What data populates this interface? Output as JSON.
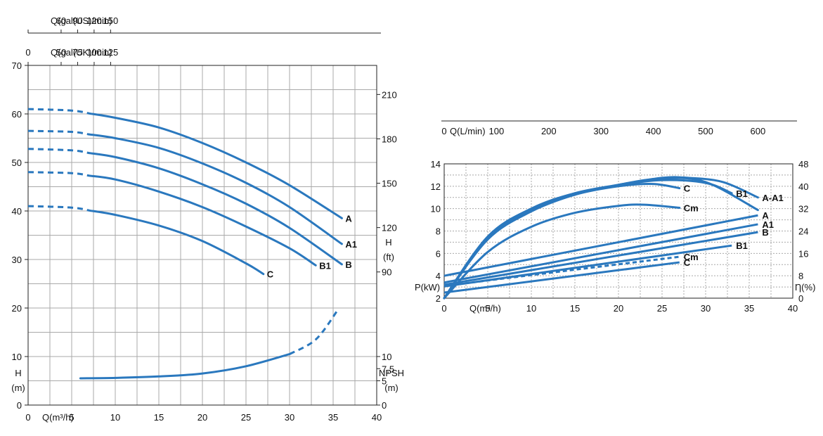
{
  "chart_data": [
    {
      "name": "head-npsh-chart",
      "type": "line",
      "x_label": "Q(m³/h)",
      "x_ticks": [
        0,
        5,
        10,
        15,
        20,
        25,
        30,
        35,
        40
      ],
      "xlim": [
        0,
        40
      ],
      "top_axes": [
        {
          "label": "Q(gal(US)/min)",
          "ticks": [
            60,
            90,
            120,
            150
          ]
        },
        {
          "label": "Q(gal(UK)/min)",
          "ticks": [
            0,
            50,
            75,
            100,
            125
          ]
        }
      ],
      "left_axis": {
        "label_line1": "H",
        "label_line2": "(m)",
        "ticks": [
          0,
          10,
          20,
          30,
          40,
          50,
          60,
          70
        ],
        "ylim": [
          0,
          70
        ]
      },
      "right_axis_ft": {
        "label_line1": "H",
        "label_line2": "(ft)",
        "ticks": [
          90,
          120,
          150,
          180,
          210
        ]
      },
      "right_axis_npsh": {
        "label_line1": "NPSH",
        "label_line2": "(m)",
        "ticks": [
          "0",
          "5",
          "7,5",
          "10"
        ]
      },
      "series": [
        {
          "name": "A",
          "dashed_x": [
            0,
            7
          ],
          "solid_x": [
            7,
            36
          ],
          "points": [
            [
              0,
              61
            ],
            [
              5,
              60.7
            ],
            [
              10,
              59.2
            ],
            [
              15,
              57.2
            ],
            [
              20,
              54
            ],
            [
              25,
              50
            ],
            [
              30,
              45.3
            ],
            [
              36,
              38.5
            ]
          ]
        },
        {
          "name": "A1",
          "dashed_x": [
            0,
            7
          ],
          "solid_x": [
            7,
            36
          ],
          "points": [
            [
              0,
              56.5
            ],
            [
              5,
              56.3
            ],
            [
              10,
              55
            ],
            [
              15,
              53
            ],
            [
              20,
              49.8
            ],
            [
              25,
              45.8
            ],
            [
              30,
              40.8
            ],
            [
              36,
              33.2
            ]
          ]
        },
        {
          "name": "B",
          "dashed_x": [
            0,
            7
          ],
          "solid_x": [
            7,
            36
          ],
          "points": [
            [
              0,
              52.8
            ],
            [
              5,
              52.5
            ],
            [
              10,
              51.1
            ],
            [
              15,
              48.8
            ],
            [
              20,
              45.5
            ],
            [
              25,
              41.5
            ],
            [
              30,
              36.5
            ],
            [
              36,
              29
            ]
          ]
        },
        {
          "name": "B1",
          "dashed_x": [
            0,
            7
          ],
          "solid_x": [
            7,
            33
          ],
          "points": [
            [
              0,
              48
            ],
            [
              5,
              47.8
            ],
            [
              10,
              46.5
            ],
            [
              15,
              44
            ],
            [
              20,
              40.8
            ],
            [
              25,
              36.8
            ],
            [
              30,
              32.3
            ],
            [
              33,
              28.8
            ]
          ]
        },
        {
          "name": "C",
          "dashed_x": [
            0,
            7
          ],
          "solid_x": [
            7,
            27
          ],
          "points": [
            [
              0,
              41
            ],
            [
              5,
              40.7
            ],
            [
              10,
              39.2
            ],
            [
              15,
              37
            ],
            [
              20,
              33.8
            ],
            [
              25,
              29.2
            ],
            [
              27,
              27
            ]
          ]
        },
        {
          "name": "NPSH",
          "solid_x": [
            6,
            30
          ],
          "dashed_x": [
            30,
            35.5
          ],
          "points": [
            [
              6,
              5.5
            ],
            [
              10,
              5.6
            ],
            [
              15,
              5.9
            ],
            [
              20,
              6.5
            ],
            [
              25,
              8
            ],
            [
              30,
              10.5
            ],
            [
              33,
              13.5
            ],
            [
              35.5,
              19.5
            ]
          ]
        }
      ]
    },
    {
      "name": "power-efficiency-chart",
      "type": "line",
      "x_label": "Q(m³/h)",
      "x_ticks": [
        0,
        5,
        10,
        15,
        20,
        25,
        30,
        35,
        40
      ],
      "xlim": [
        0,
        40
      ],
      "top_axis": {
        "label": "Q(L/min)",
        "ticks": [
          0,
          100,
          200,
          300,
          400,
          500,
          600
        ]
      },
      "left_axis": {
        "label": "P(kW)",
        "ticks": [
          2,
          4,
          6,
          8,
          10,
          12,
          14
        ],
        "ylim": [
          2,
          14
        ]
      },
      "right_axis": {
        "label": "Ƞ(%)",
        "ticks": [
          0,
          8,
          16,
          24,
          32,
          40,
          48
        ],
        "ylim": [
          0,
          48
        ]
      },
      "power_series": [
        {
          "name": "A",
          "label": "A",
          "points": [
            [
              0,
              4
            ],
            [
              36,
              9.4
            ]
          ]
        },
        {
          "name": "A1",
          "label": "A1",
          "points": [
            [
              0,
              3.4
            ],
            [
              36,
              8.6
            ]
          ]
        },
        {
          "name": "B",
          "label": "B",
          "points": [
            [
              0,
              3.2
            ],
            [
              36,
              7.9
            ]
          ]
        },
        {
          "name": "B1",
          "label": "B1",
          "points": [
            [
              0,
              3.05
            ],
            [
              33,
              6.7
            ]
          ]
        },
        {
          "name": "Cm",
          "label": "Cm",
          "dashed": true,
          "points": [
            [
              0,
              3.1
            ],
            [
              27,
              5.7
            ]
          ]
        },
        {
          "name": "C",
          "label": "C",
          "points": [
            [
              0,
              2.5
            ],
            [
              27,
              5.2
            ]
          ]
        }
      ],
      "efficiency_series": [
        {
          "name": "A-A1",
          "label": "A-A1",
          "points": [
            [
              0,
              0
            ],
            [
              5,
              22
            ],
            [
              10,
              32
            ],
            [
              15,
              37.5
            ],
            [
              20,
              40.5
            ],
            [
              25,
              43
            ],
            [
              28,
              43
            ],
            [
              32,
              41.5
            ],
            [
              36,
              36
            ]
          ]
        },
        {
          "name": "B1-eff",
          "label": "B1",
          "points": [
            [
              0,
              0
            ],
            [
              5,
              22
            ],
            [
              10,
              32
            ],
            [
              15,
              37.5
            ],
            [
              20,
              40.3
            ],
            [
              25,
              42.2
            ],
            [
              30,
              41.2
            ],
            [
              33,
              37.5
            ]
          ]
        },
        {
          "name": "A-eff",
          "label": "",
          "points": [
            [
              0,
              0
            ],
            [
              5,
              21
            ],
            [
              10,
              31
            ],
            [
              15,
              37
            ],
            [
              20,
              40.5
            ],
            [
              25,
              42.8
            ],
            [
              30,
              41.5
            ],
            [
              36,
              31.5
            ]
          ]
        },
        {
          "name": "C-eff",
          "label": "C",
          "points": [
            [
              0,
              0
            ],
            [
              5,
              21.5
            ],
            [
              10,
              31.5
            ],
            [
              15,
              37
            ],
            [
              20,
              40
            ],
            [
              24,
              40.8
            ],
            [
              27,
              39.3
            ]
          ]
        },
        {
          "name": "Cm-eff",
          "label": "Cm",
          "points": [
            [
              0,
              0
            ],
            [
              5,
              16.5
            ],
            [
              10,
              25.5
            ],
            [
              15,
              30.5
            ],
            [
              20,
              33
            ],
            [
              23,
              33.4
            ],
            [
              27,
              32.3
            ]
          ]
        }
      ]
    }
  ]
}
